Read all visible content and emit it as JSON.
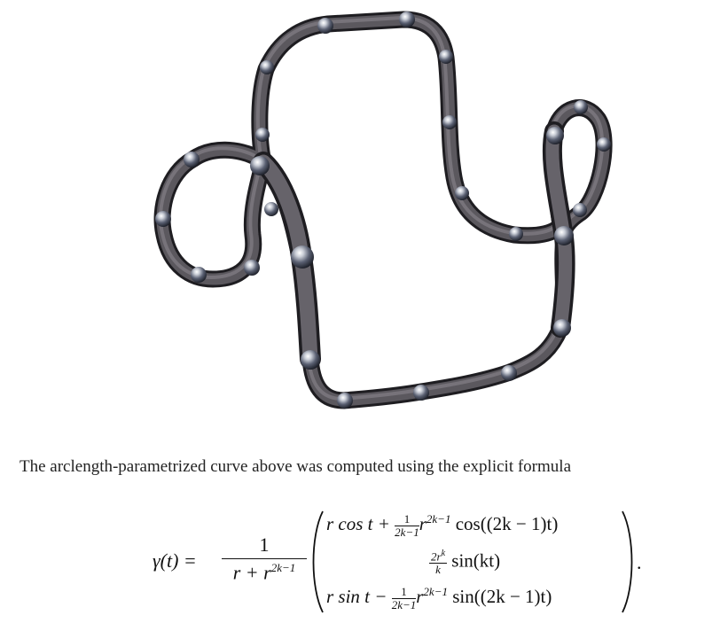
{
  "figure": {
    "description_label": "3D rendered closed curve (tube) with spherical markers"
  },
  "caption": {
    "text": "The arclength-parametrized curve above was computed using the explicit formula"
  },
  "formula": {
    "lhs": "γ(t) =",
    "prefactor_numerator": "1",
    "prefactor_denominator_r": "r + r",
    "prefactor_denominator_exp": "2k−1",
    "row1": {
      "lead": "r cos t +",
      "frac_num": "1",
      "frac_den": "2k−1",
      "r": "r",
      "exp": "2k−1",
      "tail": "cos((2k − 1)t)"
    },
    "row2": {
      "frac_num": "2r",
      "frac_num_exp": "k",
      "frac_den": "k",
      "tail": "sin(kt)"
    },
    "row3": {
      "lead": "r sin t −",
      "frac_num": "1",
      "frac_den": "2k−1",
      "r": "r",
      "exp": "2k−1",
      "tail": "sin((2k − 1)t)"
    },
    "trailing": "."
  }
}
